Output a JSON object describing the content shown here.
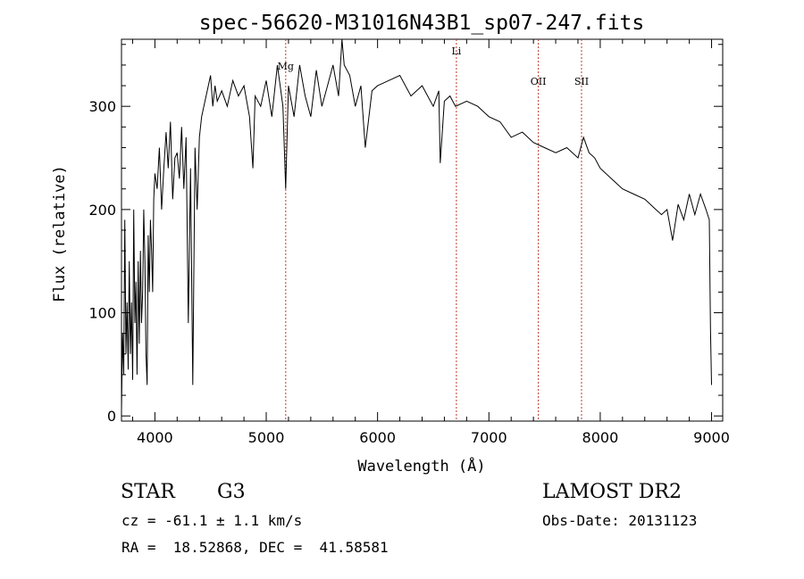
{
  "chart_data": {
    "type": "line",
    "title": "spec-56620-M31016N43B1_sp07-247.fits",
    "xlabel": "Wavelength (Å)",
    "ylabel": "Flux (relative)",
    "xlim": [
      3700,
      9100
    ],
    "ylim": [
      -5,
      365
    ],
    "xticks": [
      4000,
      5000,
      6000,
      7000,
      8000,
      9000
    ],
    "yticks": [
      0,
      100,
      200,
      300
    ],
    "grid": false,
    "line_color": "#000000",
    "marker_color": "#c0392b",
    "spectral_lines": [
      {
        "name": "Mg",
        "x": 5175
      },
      {
        "name": "Li",
        "x": 6708
      },
      {
        "name": "OII",
        "x": 7444
      },
      {
        "name": "SII",
        "x": 7832
      }
    ],
    "series": [
      {
        "x": [
          3700,
          3710,
          3720,
          3730,
          3740,
          3750,
          3760,
          3770,
          3780,
          3790,
          3800,
          3810,
          3820,
          3830,
          3840,
          3850,
          3860,
          3870,
          3880,
          3890,
          3900,
          3910,
          3920,
          3930,
          3940,
          3950,
          3960,
          3970,
          3980,
          3990,
          4000,
          4020,
          4040,
          4060,
          4080,
          4100,
          4120,
          4140,
          4160,
          4180,
          4200,
          4220,
          4240,
          4260,
          4280,
          4300,
          4320,
          4340,
          4360,
          4380,
          4400,
          4420,
          4440,
          4460,
          4480,
          4500,
          4520,
          4540,
          4560,
          4580,
          4600,
          4650,
          4700,
          4750,
          4800,
          4850,
          4880,
          4900,
          4950,
          5000,
          5050,
          5100,
          5150,
          5175,
          5200,
          5250,
          5300,
          5350,
          5400,
          5450,
          5500,
          5550,
          5600,
          5650,
          5680,
          5700,
          5750,
          5800,
          5850,
          5890,
          5950,
          6000,
          6100,
          6200,
          6300,
          6400,
          6500,
          6550,
          6563,
          6600,
          6650,
          6700,
          6800,
          6900,
          7000,
          7100,
          7200,
          7300,
          7400,
          7500,
          7600,
          7700,
          7800,
          7850,
          7900,
          7950,
          8000,
          8100,
          8200,
          8300,
          8400,
          8500,
          8550,
          8600,
          8650,
          8700,
          8750,
          8800,
          8850,
          8900,
          8950,
          8980,
          8990,
          9000
        ],
        "values": [
          5,
          80,
          40,
          190,
          60,
          110,
          45,
          150,
          60,
          110,
          35,
          200,
          90,
          130,
          40,
          150,
          70,
          160,
          90,
          120,
          200,
          150,
          60,
          30,
          175,
          120,
          190,
          160,
          120,
          210,
          235,
          220,
          260,
          200,
          240,
          275,
          240,
          285,
          210,
          250,
          255,
          230,
          280,
          220,
          270,
          90,
          240,
          30,
          260,
          200,
          270,
          290,
          300,
          310,
          320,
          330,
          300,
          320,
          305,
          310,
          315,
          300,
          325,
          310,
          320,
          290,
          240,
          310,
          300,
          325,
          290,
          340,
          300,
          220,
          320,
          290,
          340,
          310,
          290,
          335,
          300,
          320,
          340,
          310,
          365,
          340,
          330,
          300,
          320,
          260,
          315,
          320,
          325,
          330,
          310,
          320,
          300,
          315,
          245,
          305,
          310,
          300,
          305,
          300,
          290,
          285,
          270,
          275,
          265,
          260,
          255,
          260,
          250,
          270,
          255,
          250,
          240,
          230,
          220,
          215,
          210,
          200,
          195,
          200,
          170,
          205,
          190,
          215,
          195,
          215,
          200,
          190,
          85,
          30
        ]
      }
    ]
  },
  "info": {
    "obj_class": "STAR",
    "subclass": "G3",
    "survey": "LAMOST DR2",
    "cz": "cz = -61.1 ± 1.1 km/s",
    "obs_date": "Obs-Date: 20131123",
    "radec": "RA =  18.52868, DEC =  41.58581"
  }
}
